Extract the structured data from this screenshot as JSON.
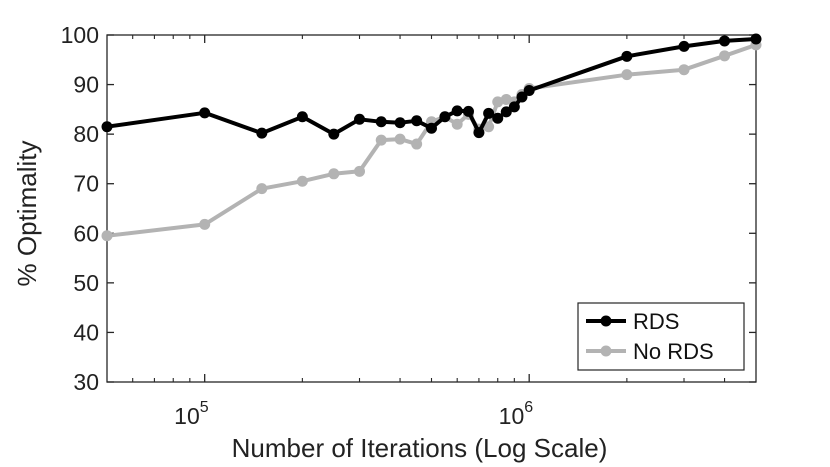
{
  "chart_data": {
    "type": "line",
    "title": "",
    "xlabel": "Number of Iterations (Log Scale)",
    "ylabel": "% Optimality",
    "xscale": "log",
    "xlim": [
      50000,
      5000000
    ],
    "ylim": [
      30,
      100
    ],
    "yticks": [
      30,
      40,
      50,
      60,
      70,
      80,
      90,
      100
    ],
    "xticks": [
      {
        "value": 100000,
        "base": "10",
        "exponent": "5"
      },
      {
        "value": 1000000,
        "base": "10",
        "exponent": "6"
      }
    ],
    "grid": false,
    "legend_position": "bottom-right",
    "series": [
      {
        "name": "No RDS",
        "color": "#b3b3b3",
        "x": [
          50000,
          100000,
          150000,
          200000,
          250000,
          300000,
          350000,
          400000,
          450000,
          500000,
          550000,
          600000,
          650000,
          700000,
          750000,
          800000,
          850000,
          900000,
          950000,
          1000000,
          2000000,
          3000000,
          4000000,
          5000000
        ],
        "y": [
          59.5,
          61.8,
          69.0,
          70.5,
          72.0,
          72.5,
          78.8,
          79.0,
          78.0,
          82.5,
          83.5,
          82.0,
          84.0,
          81.0,
          81.5,
          86.5,
          87.0,
          86.5,
          88.0,
          89.2,
          92.0,
          93.0,
          95.8,
          98.0
        ]
      },
      {
        "name": "RDS",
        "color": "#000000",
        "x": [
          50000,
          100000,
          150000,
          200000,
          250000,
          300000,
          350000,
          400000,
          450000,
          500000,
          550000,
          600000,
          650000,
          700000,
          750000,
          800000,
          850000,
          900000,
          950000,
          1000000,
          2000000,
          3000000,
          4000000,
          5000000
        ],
        "y": [
          81.5,
          84.3,
          80.2,
          83.5,
          80.0,
          83.0,
          82.5,
          82.3,
          82.7,
          81.2,
          83.5,
          84.7,
          84.6,
          80.3,
          84.2,
          83.2,
          84.5,
          85.5,
          87.5,
          88.8,
          95.7,
          97.7,
          98.8,
          99.2
        ]
      }
    ]
  }
}
